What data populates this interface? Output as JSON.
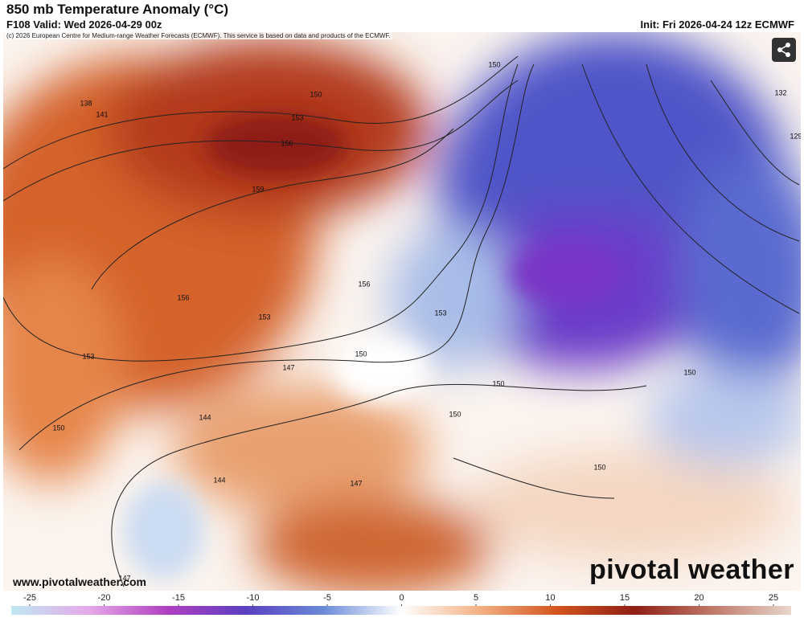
{
  "header": {
    "title": "850 mb Temperature Anomaly (°C)",
    "valid": "F108 Valid: Wed 2026-04-29 00z",
    "init": "Init: Fri 2026-04-24 12z ECMWF"
  },
  "copyright": "(c) 2026 European Centre for Medium-range Weather Forecasts (ECMWF). This service is based on data and products of the ECMWF.",
  "contour_labels": [
    "150",
    "153",
    "156",
    "159",
    "138",
    "141",
    "150",
    "132",
    "129",
    "156",
    "156",
    "153",
    "153",
    "153",
    "150",
    "147",
    "150",
    "150",
    "144",
    "150",
    "144",
    "147",
    "150",
    "147",
    "150"
  ],
  "footer": {
    "site": "www.pivotalweather.com",
    "brand": "pivotal weather"
  },
  "colorbar": {
    "ticks": [
      -25,
      -20,
      -15,
      -10,
      -5,
      0,
      5,
      10,
      15,
      20,
      25
    ]
  }
}
